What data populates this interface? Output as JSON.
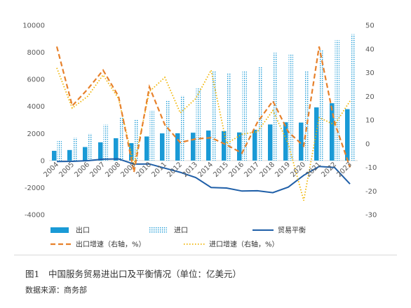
{
  "chart_data": {
    "type": "bar+line",
    "categories": [
      "2004",
      "2005",
      "2006",
      "2007",
      "2008",
      "2009",
      "2010",
      "2011",
      "2012",
      "2013",
      "2014",
      "2015",
      "2016",
      "2017",
      "2018",
      "2019",
      "2020",
      "2021",
      "2022",
      "2023"
    ],
    "left_axis": {
      "ylim": [
        -4000,
        10000
      ],
      "ticks": [
        "10000",
        "8000",
        "6000",
        "4000",
        "2000",
        "0",
        "-2000",
        "-4000"
      ],
      "tick_values": [
        10000,
        8000,
        6000,
        4000,
        2000,
        0,
        -2000,
        -4000
      ]
    },
    "right_axis": {
      "ylim": [
        -30,
        50
      ],
      "ticks": [
        "50",
        "40",
        "30",
        "20",
        "10",
        "0",
        "-10",
        "-20",
        "-30"
      ],
      "tick_values": [
        50,
        40,
        30,
        20,
        10,
        0,
        -10,
        -20,
        -30
      ]
    },
    "series": [
      {
        "name": "出口",
        "axis": "left",
        "kind": "bar",
        "color": "#1a9ad6",
        "values": [
          720,
          780,
          1000,
          1350,
          1650,
          1290,
          1780,
          2010,
          2020,
          2060,
          2220,
          2180,
          2080,
          2280,
          2670,
          2830,
          2810,
          3930,
          4240,
          3800
        ]
      },
      {
        "name": "进口",
        "axis": "left",
        "kind": "bar-dotted",
        "color": "#1a9ad6",
        "values": [
          1440,
          1700,
          2000,
          2650,
          3170,
          3030,
          3720,
          4480,
          4800,
          5330,
          6580,
          6470,
          6620,
          6930,
          7960,
          7870,
          6630,
          8210,
          8890,
          9340
        ]
      },
      {
        "name": "贸易平衡",
        "axis": "left",
        "kind": "line",
        "color": "#1f5fa8",
        "values": [
          -70,
          -60,
          -10,
          100,
          120,
          -260,
          -250,
          -560,
          -870,
          -1250,
          -1990,
          -2030,
          -2250,
          -2230,
          -2370,
          -1960,
          -1090,
          -440,
          -510,
          -1730
        ]
      },
      {
        "name": "出口增速（右轴，%）",
        "axis": "right",
        "kind": "dashed-line",
        "color": "#e7812b",
        "values": [
          41,
          16,
          23,
          31,
          20,
          -12,
          24,
          8,
          0.5,
          2,
          2.5,
          -0.5,
          -4,
          9,
          18,
          5,
          -1,
          41,
          9,
          -10
        ]
      },
      {
        "name": "进口增速（右轴，%）",
        "axis": "right",
        "kind": "dotted-line",
        "color": "#f0b400",
        "values": [
          32,
          15,
          20,
          29,
          19,
          -9,
          22,
          28,
          13,
          19,
          31,
          0,
          4,
          5,
          14,
          0,
          -24,
          11,
          8,
          18
        ]
      }
    ],
    "legend": {
      "placement": "bottom"
    }
  },
  "caption": "图1　中国服务贸易进出口及平衡情况（单位：亿美元）",
  "source": "数据来源：商务部"
}
